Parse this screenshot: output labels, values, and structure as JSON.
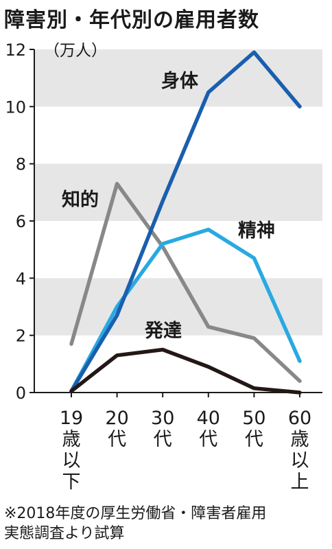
{
  "title": "障害別・年代別の雇用者数",
  "chart_data": {
    "type": "line",
    "y_unit": "（万人）",
    "ylim": [
      0,
      12
    ],
    "yticks": [
      0,
      2,
      4,
      6,
      8,
      10,
      12
    ],
    "grid": "alternating horizontal bands",
    "categories": [
      [
        "19",
        "歳",
        "以",
        "下"
      ],
      [
        "20",
        "代"
      ],
      [
        "30",
        "代"
      ],
      [
        "40",
        "代"
      ],
      [
        "50",
        "代"
      ],
      [
        "60",
        "歳",
        "以",
        "上"
      ]
    ],
    "series": [
      {
        "name": "身体",
        "color": "#1a5fae",
        "values": [
          0.05,
          2.7,
          6.7,
          10.5,
          11.9,
          10.0
        ]
      },
      {
        "name": "知的",
        "color": "#888888",
        "values": [
          1.7,
          7.3,
          5.1,
          2.3,
          1.9,
          0.4
        ]
      },
      {
        "name": "精神",
        "color": "#29a9e1",
        "values": [
          0.05,
          3.0,
          5.2,
          5.7,
          4.7,
          1.1
        ]
      },
      {
        "name": "発達",
        "color": "#231815",
        "values": [
          0.05,
          1.3,
          1.5,
          0.9,
          0.15,
          0.0
        ]
      }
    ]
  },
  "note": {
    "line1": "※2018年度の厚生労働省・障害者雇用",
    "line2": "実態調査より試算"
  }
}
